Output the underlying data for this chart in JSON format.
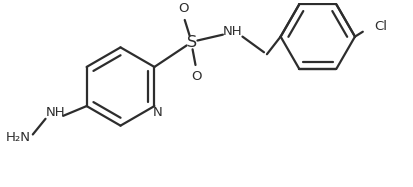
{
  "bg_color": "#ffffff",
  "line_color": "#2d2d2d",
  "text_color": "#2d2d2d",
  "linewidth": 1.6,
  "fontsize": 9.5,
  "figsize": [
    4.14,
    1.87
  ],
  "dpi": 100,
  "xlim": [
    0.0,
    1.0
  ],
  "ylim": [
    0.0,
    1.0
  ]
}
